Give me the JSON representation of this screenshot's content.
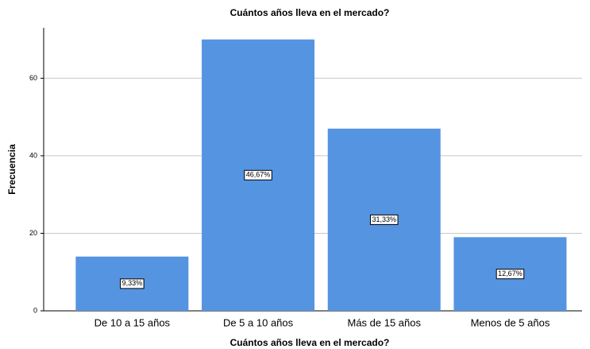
{
  "chart_data": {
    "type": "bar",
    "title": "Cuántos años lleva en el mercado?",
    "x_label": "Cuántos años lleva en el mercado?",
    "y_label": "Frecuencia",
    "categories": [
      "De 10 a 15 años",
      "De 5 a 10 años",
      "Más de 15 años",
      "Menos de 5 años"
    ],
    "values": [
      14,
      70,
      47,
      19
    ],
    "percent_labels": [
      {
        "value": 9.33,
        "label": "9,33%"
      },
      {
        "value": 46.67,
        "label": "46,67%"
      },
      {
        "value": 31.33,
        "label": "31,33%"
      },
      {
        "value": 12.67,
        "label": "12,67%"
      }
    ],
    "color": "#5594e0",
    "ylim": [
      0,
      73
    ],
    "yticks": [
      0,
      20,
      40,
      60
    ],
    "grid": true
  }
}
